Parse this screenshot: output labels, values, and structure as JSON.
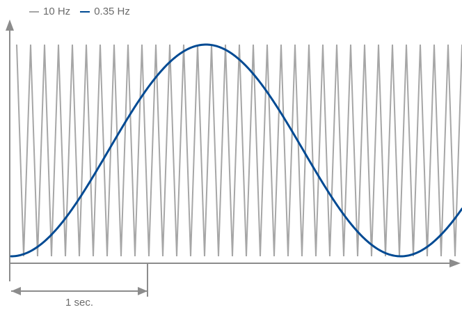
{
  "chart_data": {
    "type": "line",
    "title": "",
    "xlabel": "",
    "ylabel": "",
    "grid": false,
    "legend_position": "top-left",
    "x_range_seconds": [
      0,
      3.25
    ],
    "y_range": [
      -1.1,
      1.1
    ],
    "series": [
      {
        "name": "10 Hz",
        "color": "#a6a6a6",
        "waveform": "triangle",
        "frequency_hz": 10,
        "amplitude": 1,
        "cycles_visible": 32
      },
      {
        "name": "0.35 Hz",
        "color": "#004a93",
        "waveform": "sine",
        "frequency_hz": 0.35,
        "amplitude": 1,
        "phase_start": "minimum"
      }
    ],
    "annotation": {
      "label": "1 sec.",
      "span_seconds": [
        0,
        1
      ]
    }
  },
  "legend": {
    "items": [
      {
        "label": "10 Hz",
        "color": "#a6a6a6"
      },
      {
        "label": "0.35 Hz",
        "color": "#004a93"
      }
    ]
  },
  "colors": {
    "axis": "#8c8c8c",
    "text": "#6b6b6b"
  }
}
